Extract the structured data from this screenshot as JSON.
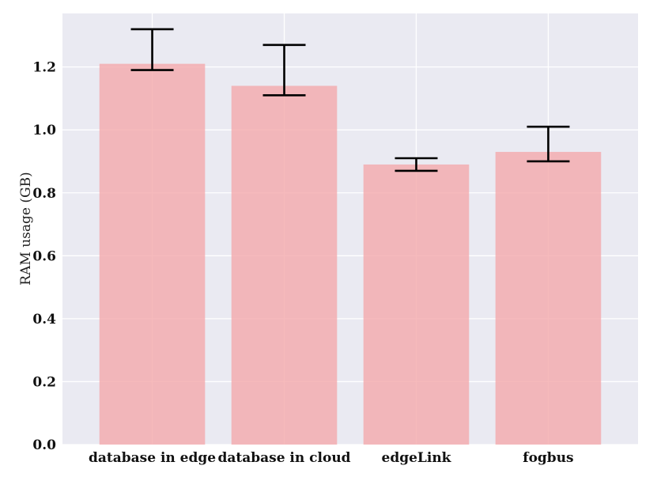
{
  "chart_data": {
    "type": "bar",
    "title": "",
    "xlabel": "",
    "ylabel": "RAM usage (GB)",
    "categories": [
      "database in edge",
      "database in cloud",
      "edgeLink",
      "fogbus"
    ],
    "values": [
      1.21,
      1.14,
      0.89,
      0.93
    ],
    "error_low": [
      1.19,
      1.11,
      0.87,
      0.9
    ],
    "error_high": [
      1.32,
      1.27,
      0.91,
      1.01
    ],
    "ylim": [
      0,
      1.37
    ],
    "yticks": [
      "0.0",
      "0.2",
      "0.4",
      "0.6",
      "0.8",
      "1.0",
      "1.2"
    ],
    "grid": true,
    "legend": "none",
    "colors": {
      "background": "#eaeaf2",
      "grid": "#ffffff",
      "bar": "#f4a9ab",
      "bar_opacity": 0.8,
      "error_bar": "#000000"
    }
  }
}
